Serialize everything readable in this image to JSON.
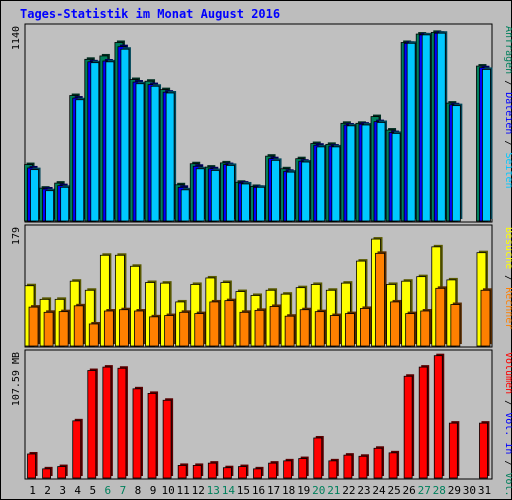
{
  "chart_data": {
    "type": "bar",
    "title": "Tages-Statistik im Monat August 2016",
    "categories": [
      "1",
      "2",
      "3",
      "4",
      "5",
      "6",
      "7",
      "8",
      "9",
      "10",
      "11",
      "12",
      "13",
      "14",
      "15",
      "16",
      "17",
      "18",
      "19",
      "20",
      "21",
      "22",
      "23",
      "24",
      "25",
      "26",
      "27",
      "28",
      "29",
      "30",
      "31"
    ],
    "weekend_days": [
      "6",
      "7",
      "13",
      "14",
      "20",
      "21",
      "27",
      "28"
    ],
    "panels": [
      {
        "name": "requests",
        "max_label": "1140",
        "ylim": [
          0,
          1140
        ],
        "right_labels": [
          {
            "text": "Anfragen",
            "color": "#00805c"
          },
          {
            "text": "Dateien",
            "color": "#0000ff"
          },
          {
            "text": "Seiten",
            "color": "#00c8ff"
          }
        ],
        "series": [
          {
            "name": "Anfragen",
            "color": "#00805c",
            "values": [
              335,
              195,
              225,
              745,
              960,
              980,
              1060,
              840,
              830,
              780,
              215,
              340,
              320,
              345,
              230,
              205,
              385,
              310,
              370,
              460,
              455,
              580,
              580,
              620,
              540,
              1060,
              1110,
              1120,
              700,
              null,
              920
            ]
          },
          {
            "name": "Dateien",
            "color": "#0000ff",
            "values": [
              315,
              190,
              210,
              730,
              945,
              950,
              1035,
              825,
              810,
              765,
              200,
              325,
              310,
              335,
              225,
              200,
              370,
              295,
              355,
              450,
              445,
              570,
              575,
              590,
              525,
              1055,
              1105,
              1115,
              690,
              null,
              910
            ]
          },
          {
            "name": "Seiten",
            "color": "#00c8ff",
            "values": [
              305,
              180,
              200,
              720,
              940,
              945,
              1020,
              815,
              800,
              760,
              185,
              310,
              300,
              330,
              220,
              200,
              360,
              290,
              350,
              440,
              440,
              565,
              570,
              585,
              520,
              1055,
              1105,
              1115,
              685,
              null,
              900
            ]
          }
        ]
      },
      {
        "name": "visits",
        "max_label": "179",
        "ylim": [
          0,
          179
        ],
        "right_labels": [
          {
            "text": "Besuche",
            "color": "#ffff00"
          },
          {
            "text": "Rechner",
            "color": "#ff8000"
          }
        ],
        "series": [
          {
            "name": "Besuche",
            "color": "#ffff00",
            "values": [
              93,
              72,
              72,
              100,
              86,
              140,
              140,
              123,
              98,
              97,
              68,
              95,
              105,
              98,
              84,
              78,
              86,
              80,
              90,
              95,
              86,
              97,
              131,
              165,
              95,
              100,
              107,
              153,
              102,
              null,
              144
            ]
          },
          {
            "name": "Rechner",
            "color": "#ff8000",
            "values": [
              60,
              52,
              53,
              62,
              34,
              54,
              56,
              54,
              45,
              47,
              52,
              50,
              68,
              70,
              52,
              55,
              61,
              46,
              56,
              53,
              47,
              50,
              58,
              143,
              68,
              50,
              54,
              89,
              64,
              null,
              86
            ]
          }
        ]
      },
      {
        "name": "volume",
        "max_label": "107.59 MB",
        "ylim": [
          0,
          107.59
        ],
        "right_labels": [
          {
            "text": "Volumen",
            "color": "#ff0000"
          },
          {
            "text": "Vol. In",
            "color": "#0000ff"
          },
          {
            "text": "Vol. Out",
            "color": "#00805c"
          }
        ],
        "series": [
          {
            "name": "Volumen",
            "color": "#ff0000",
            "values": [
              21,
              8,
              10,
              50,
              94,
              97,
              96,
              78,
              74,
              68,
              11,
              11,
              13,
              9,
              10,
              8,
              13,
              15,
              17,
              35,
              15,
              20,
              19,
              26,
              22,
              89,
              97,
              107,
              48,
              null,
              48
            ]
          }
        ]
      }
    ],
    "colors": {
      "background": "#bdbdbd",
      "panel_bg": "#c0c0c0",
      "title": "#0000ff",
      "weekday_label": "#000000",
      "weekend_label": "#00805c"
    }
  }
}
